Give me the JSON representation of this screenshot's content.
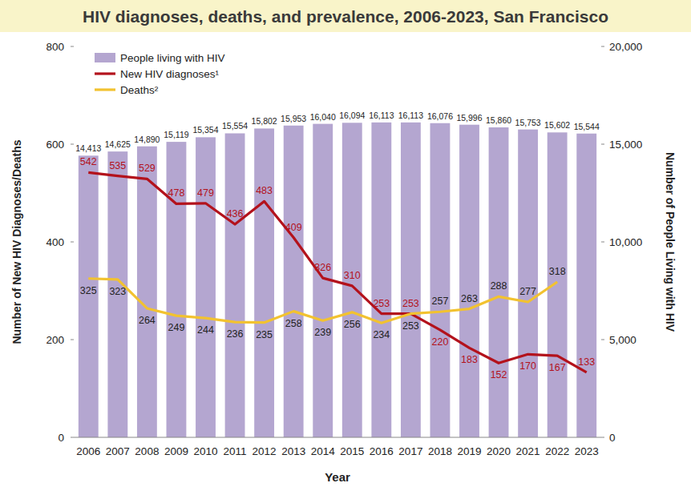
{
  "chart_data": {
    "type": "bar",
    "title": "HIV diagnoses, deaths, and prevalence, 2006-2023, San Francisco",
    "x_label": "Year",
    "y_label": "Number of New HIV Diagnoses/Deaths",
    "y2_label": "Number of People Living with HIV",
    "categories": [
      "2006",
      "2007",
      "2008",
      "2009",
      "2010",
      "2011",
      "2012",
      "2013",
      "2014",
      "2015",
      "2016",
      "2017",
      "2018",
      "2019",
      "2020",
      "2021",
      "2022",
      "2023"
    ],
    "series": [
      {
        "name": "People living with HIV",
        "type": "bar",
        "axis": "y2",
        "color": "#b4a6d0",
        "values": [
          14413,
          14625,
          14890,
          15119,
          15354,
          15554,
          15802,
          15953,
          16040,
          16094,
          16113,
          16113,
          16076,
          15996,
          15860,
          15753,
          15602,
          15544
        ],
        "value_labels": [
          "14,413",
          "14,625",
          "14,890",
          "15,119",
          "15,354",
          "15,554",
          "15,802",
          "15,953",
          "16,040",
          "16,094",
          "16,113",
          "16,113",
          "16,076",
          "15,996",
          "15,860",
          "15,753",
          "15,602",
          "15,544"
        ]
      },
      {
        "name": "New HIV diagnoses¹",
        "type": "line",
        "color": "#b3121c",
        "values": [
          542,
          535,
          529,
          478,
          479,
          436,
          483,
          409,
          326,
          310,
          253,
          253,
          220,
          183,
          152,
          170,
          167,
          133
        ]
      },
      {
        "name": "Deaths²",
        "type": "line",
        "color": "#f2c230",
        "values": [
          325,
          323,
          264,
          249,
          244,
          236,
          235,
          258,
          239,
          256,
          234,
          253,
          257,
          263,
          288,
          277,
          318,
          null
        ]
      }
    ],
    "ylim": [
      0,
      800
    ],
    "yticks": [
      0,
      200,
      400,
      600,
      800
    ],
    "y2lim": [
      0,
      20000
    ],
    "y2ticks": [
      0,
      {
        "value": 5000,
        "label": "5,000"
      },
      {
        "value": 10000,
        "label": "10,000"
      },
      {
        "value": 15000,
        "label": "15,000"
      },
      {
        "value": 20000,
        "label": "20,000"
      }
    ],
    "grid": false,
    "legend": "upper left",
    "data_labels": true
  }
}
